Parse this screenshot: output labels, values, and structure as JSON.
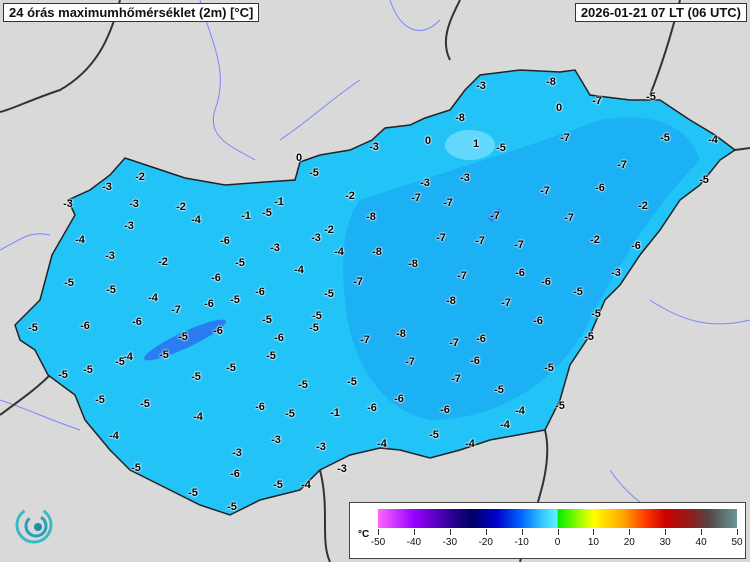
{
  "header": {
    "title": "24 órás maximumhőmérséklet (2m) [°C]",
    "timestamp": "2026-01-21 07 LT (06 UTC)"
  },
  "legend": {
    "unit": "°C",
    "ticks": [
      "-50",
      "-40",
      "-30",
      "-20",
      "-10",
      "0",
      "10",
      "20",
      "30",
      "40",
      "50"
    ],
    "colors": {
      "min": "#ff66ff",
      "cold": "#000066",
      "cool": "#0066ff",
      "zero_below": "#66eeff",
      "zero_above": "#00ee00",
      "warm": "#ffff00",
      "hot": "#cc0000",
      "max": "#669999"
    }
  },
  "map": {
    "land_fill": "#22c4f8",
    "land_fill_dark": "#1aa8f2",
    "background": "#d9d9d9",
    "logo_icon": "swirl-logo-icon",
    "station_values": [
      "-3",
      "-8",
      "0",
      "-7",
      "-5",
      "-8",
      "0",
      "1",
      "-5",
      "-7",
      "-5",
      "-4",
      "-3",
      "0",
      "-5",
      "-3",
      "-3",
      "-7",
      "-5",
      "-2",
      "-3",
      "-7",
      "-6",
      "-3",
      "-3",
      "-2",
      "-2",
      "-7",
      "-7",
      "-2",
      "-1",
      "-1",
      "-5",
      "-4",
      "-8",
      "-7",
      "-7",
      "-3",
      "-2",
      "-3",
      "-4",
      "-6",
      "-7",
      "-7",
      "-7",
      "-2",
      "-6",
      "-3",
      "-4",
      "-8",
      "-3",
      "-2",
      "-4",
      "-8",
      "-5",
      "-6",
      "-7",
      "-6",
      "-6",
      "-3",
      "-5",
      "-5",
      "-7",
      "-4",
      "-6",
      "-5",
      "-7",
      "-6",
      "-5",
      "-8",
      "-7",
      "-5",
      "-6",
      "-6",
      "-5",
      "-5",
      "-5",
      "-5",
      "-6",
      "-5",
      "-5",
      "-6",
      "-6",
      "-7",
      "-8",
      "-7",
      "-6",
      "-5",
      "-4",
      "-5",
      "-5",
      "-5",
      "-7",
      "-6",
      "-5",
      "-5",
      "-5",
      "-5",
      "-5",
      "-5",
      "-7",
      "-5",
      "-5",
      "-5",
      "-5",
      "-6",
      "-5",
      "-1",
      "-6",
      "-6",
      "-6",
      "-4",
      "-5",
      "-4",
      "-4",
      "-3",
      "-3",
      "-3",
      "-5",
      "-4",
      "-4",
      "-4",
      "-5",
      "-6",
      "-3",
      "-5",
      "-4",
      "-5",
      "-5"
    ]
  }
}
